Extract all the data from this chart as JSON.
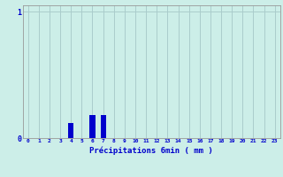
{
  "hours": [
    0,
    1,
    2,
    3,
    4,
    5,
    6,
    7,
    8,
    9,
    10,
    11,
    12,
    13,
    14,
    15,
    16,
    17,
    18,
    19,
    20,
    21,
    22,
    23
  ],
  "values": [
    0,
    0,
    0,
    0,
    0.12,
    0,
    0.18,
    0.18,
    0,
    0,
    0,
    0,
    0,
    0,
    0,
    0,
    0,
    0,
    0,
    0,
    0,
    0,
    0,
    0
  ],
  "bar_color": "#0000cc",
  "bg_color": "#cceee8",
  "grid_color": "#aacccc",
  "axis_color": "#999999",
  "text_color": "#0000cc",
  "ylim": [
    0,
    1.05
  ],
  "yticks": [
    0,
    1
  ],
  "xlabel": "Précipitations 6min ( mm )",
  "title": ""
}
